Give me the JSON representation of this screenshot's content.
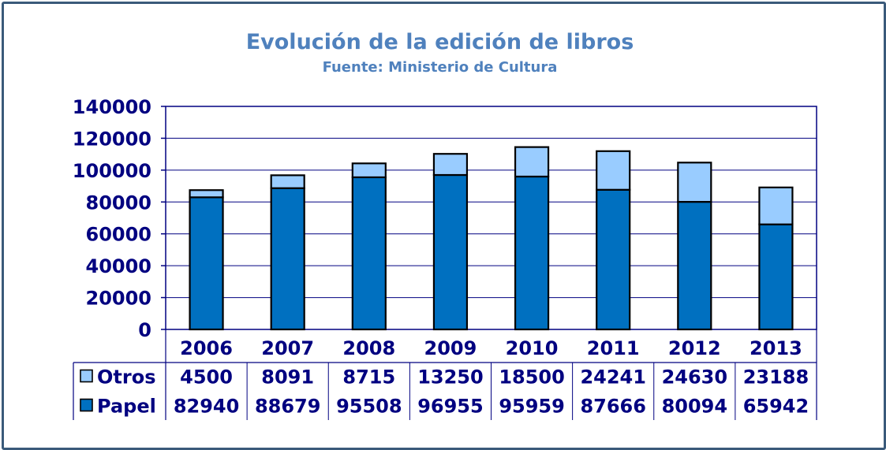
{
  "chart_data": {
    "type": "bar",
    "stacked": true,
    "title": "Evolución de la edición de libros",
    "subtitle": "Fuente: Ministerio de Cultura",
    "categories": [
      "2006",
      "2007",
      "2008",
      "2009",
      "2010",
      "2011",
      "2012",
      "2013"
    ],
    "series": [
      {
        "name": "Papel",
        "color": "#0070c0",
        "values": [
          82940,
          88679,
          95508,
          96955,
          95959,
          87666,
          80094,
          65942
        ]
      },
      {
        "name": "Otros",
        "color": "#99ccff",
        "values": [
          4500,
          8091,
          8715,
          13250,
          18500,
          24241,
          24630,
          23188
        ]
      }
    ],
    "ylim": [
      0,
      140000
    ],
    "yticks": [
      0,
      20000,
      40000,
      60000,
      80000,
      100000,
      120000,
      140000
    ],
    "grid": true,
    "data_table": true,
    "table_rows_order": [
      "Otros",
      "Papel"
    ]
  }
}
